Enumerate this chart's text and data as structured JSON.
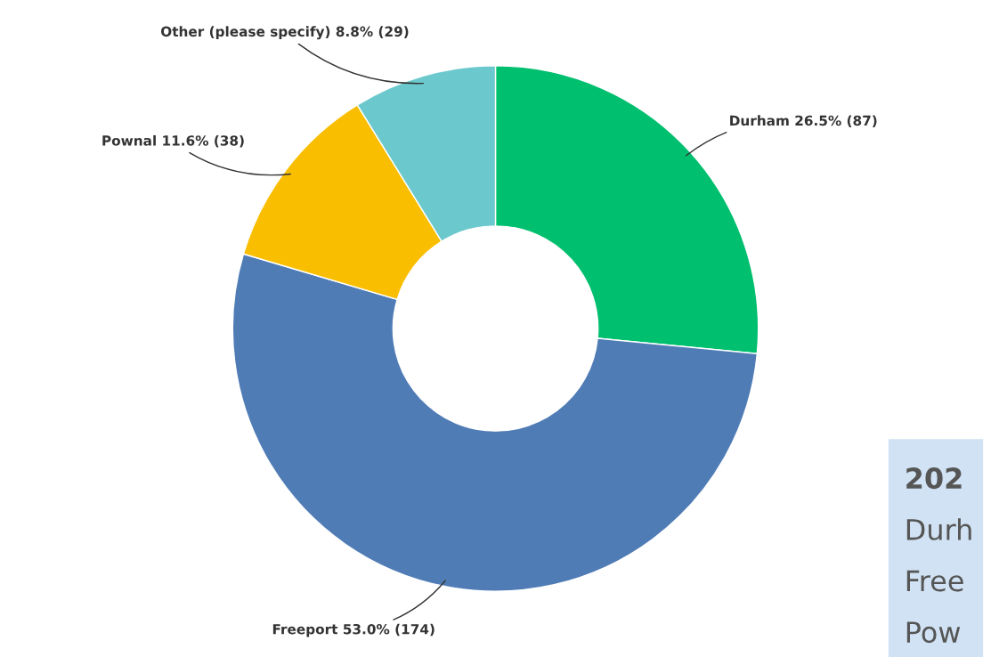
{
  "chart_data": {
    "type": "donut",
    "categories": [
      "Durham",
      "Freeport",
      "Pownal",
      "Other (please specify)"
    ],
    "values": [
      26.5,
      53.0,
      11.6,
      8.8
    ],
    "value_labels": [
      "26.5% (87)",
      "53.0% (174)",
      "11.6% (38)",
      "8.8% (29)"
    ],
    "colors": [
      "#00bf6f",
      "#507cb6",
      "#f9be00",
      "#6bc8cd"
    ],
    "annotations": [
      "202",
      "Durh",
      "Free",
      "Pow"
    ],
    "legend": false
  }
}
